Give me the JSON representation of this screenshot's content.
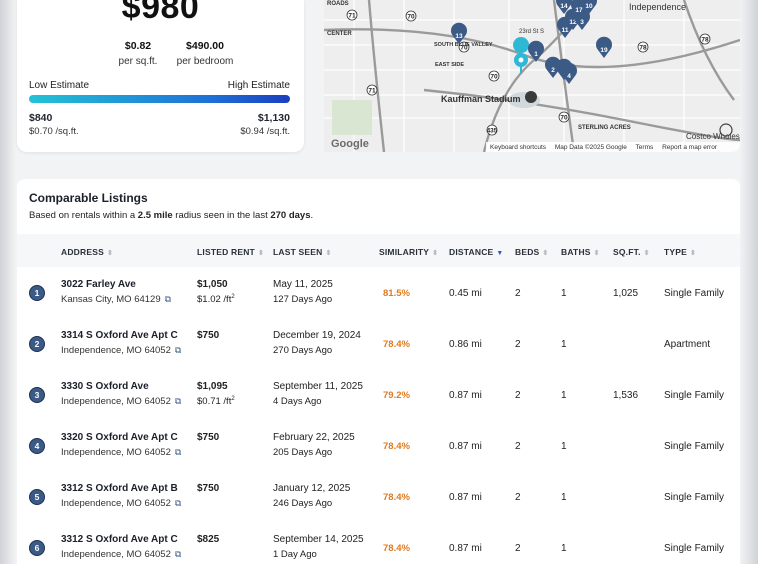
{
  "estimate": {
    "rent": "$980",
    "price_per_sqft": "$0.82",
    "price_per_sqft_label": "per sq.ft.",
    "price_per_bedroom": "$490.00",
    "price_per_bedroom_label": "per bedroom",
    "low_label": "Low Estimate",
    "high_label": "High Estimate",
    "low_value": "$840",
    "low_psf": "$0.70 /sq.ft.",
    "high_value": "$1,130",
    "high_psf": "$0.94 /sq.ft."
  },
  "map": {
    "labels": [
      "Independence",
      "Kauffman Stadium",
      "SOUTH BLUE VALLEY",
      "EAST SIDE",
      "STERLING ACRES",
      "Costco Wholesale",
      "CENTER",
      "ROADS",
      "23rd St S"
    ],
    "highway_shields": [
      "71",
      "70",
      "70",
      "435",
      "78",
      "78",
      "70",
      "71",
      "70"
    ],
    "markers": [
      "13",
      "1",
      "2",
      "9",
      "4",
      "11",
      "12",
      "3",
      "14",
      "17",
      "10",
      "19"
    ],
    "footer": {
      "shortcuts": "Keyboard shortcuts",
      "map_data": "Map Data ©2025 Google",
      "terms": "Terms",
      "report": "Report a map error"
    },
    "logo": "Google"
  },
  "listings": {
    "title": "Comparable Listings",
    "subtitle_prefix": "Based on rentals within a ",
    "subtitle_radius": "2.5 mile",
    "subtitle_mid": " radius seen in the last ",
    "subtitle_days": "270 days",
    "subtitle_suffix": ".",
    "columns": {
      "address": "ADDRESS",
      "listed_rent": "LISTED RENT",
      "last_seen": "LAST SEEN",
      "similarity": "SIMILARITY",
      "distance": "DISTANCE",
      "beds": "BEDS",
      "baths": "BATHS",
      "sqft": "SQ.FT.",
      "type": "TYPE"
    },
    "sort_column": "distance",
    "rows": [
      {
        "num": "1",
        "street": "3022 Farley Ave",
        "city": "Kansas City, MO 64129",
        "rent": "$1,050",
        "rent_psf": "$1.02 /ft",
        "last_seen": "May 11, 2025",
        "days_ago": "127 Days Ago",
        "similarity": "81.5%",
        "distance": "0.45 mi",
        "beds": "2",
        "baths": "1",
        "sqft": "1,025",
        "type": "Single Family"
      },
      {
        "num": "2",
        "street": "3314 S Oxford Ave Apt C",
        "city": "Independence, MO 64052",
        "rent": "$750",
        "rent_psf": "",
        "last_seen": "December 19, 2024",
        "days_ago": "270 Days Ago",
        "similarity": "78.4%",
        "distance": "0.86 mi",
        "beds": "2",
        "baths": "1",
        "sqft": "",
        "type": "Apartment"
      },
      {
        "num": "3",
        "street": "3330 S Oxford Ave",
        "city": "Independence, MO 64052",
        "rent": "$1,095",
        "rent_psf": "$0.71 /ft",
        "last_seen": "September 11, 2025",
        "days_ago": "4 Days Ago",
        "similarity": "79.2%",
        "distance": "0.87 mi",
        "beds": "2",
        "baths": "1",
        "sqft": "1,536",
        "type": "Single Family"
      },
      {
        "num": "4",
        "street": "3320 S Oxford Ave Apt C",
        "city": "Independence, MO 64052",
        "rent": "$750",
        "rent_psf": "",
        "last_seen": "February 22, 2025",
        "days_ago": "205 Days Ago",
        "similarity": "78.4%",
        "distance": "0.87 mi",
        "beds": "2",
        "baths": "1",
        "sqft": "",
        "type": "Single Family"
      },
      {
        "num": "5",
        "street": "3312 S Oxford Ave Apt B",
        "city": "Independence, MO 64052",
        "rent": "$750",
        "rent_psf": "",
        "last_seen": "January 12, 2025",
        "days_ago": "246 Days Ago",
        "similarity": "78.4%",
        "distance": "0.87 mi",
        "beds": "2",
        "baths": "1",
        "sqft": "",
        "type": "Single Family"
      },
      {
        "num": "6",
        "street": "3312 S Oxford Ave Apt C",
        "city": "Independence, MO 64052",
        "rent": "$825",
        "rent_psf": "",
        "last_seen": "September 14, 2025",
        "days_ago": "1 Day Ago",
        "similarity": "78.4%",
        "distance": "0.87 mi",
        "beds": "2",
        "baths": "1",
        "sqft": "",
        "type": "Single Family"
      }
    ]
  },
  "colors": {
    "accent": "#2a5bd7",
    "similarity": "#e07a1f",
    "marker": "#3b5a86",
    "gradient_start": "#22c3d6",
    "gradient_end": "#1a3fbf"
  }
}
